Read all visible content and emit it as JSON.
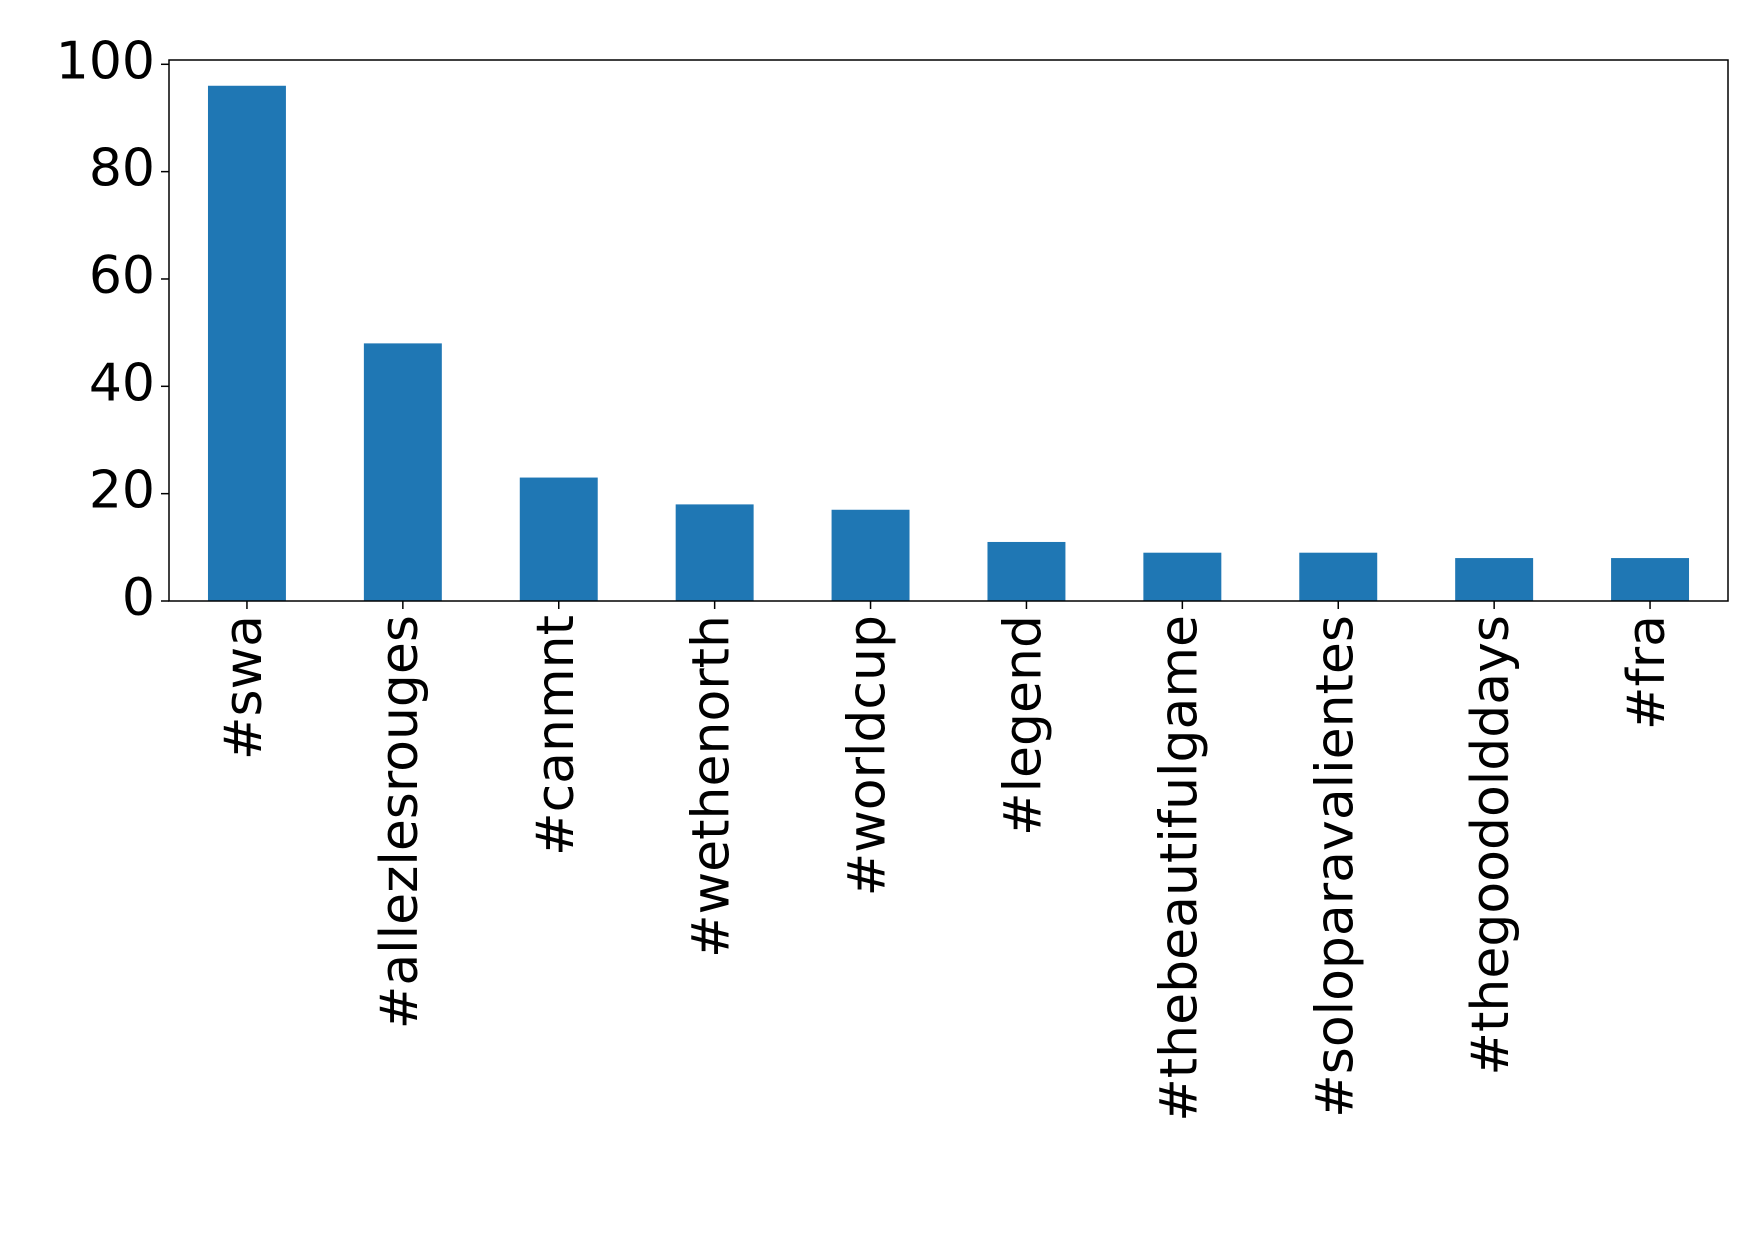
{
  "chart_data": {
    "type": "bar",
    "categories": [
      "#swa",
      "#allezlesrouges",
      "#canmnt",
      "#wethenorth",
      "#worldcup",
      "#legend",
      "#thebeautifulgame",
      "#soloparavalientes",
      "#thegoodolddays",
      "#fra"
    ],
    "values": [
      96,
      48,
      23,
      18,
      17,
      11,
      9,
      9,
      8,
      8
    ],
    "color": "#1f77b4",
    "ylim": [
      0,
      100.8
    ],
    "yticks": [
      0,
      20,
      40,
      60,
      80,
      100
    ],
    "grid": false
  }
}
